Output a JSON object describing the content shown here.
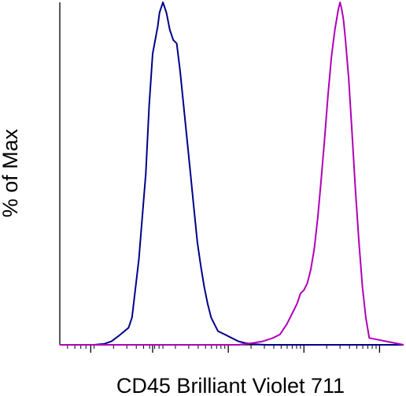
{
  "chart_data": {
    "type": "line",
    "chart_kind": "flow-cytometry-histogram",
    "title": "",
    "xlabel": "CD45 Brilliant Violet 711",
    "ylabel": "% of Max",
    "xscale": "biexponential",
    "x_tick_labels": [],
    "y_tick_labels": [],
    "xlim": [
      0,
      100
    ],
    "ylim": [
      0,
      100
    ],
    "grid": false,
    "legend": "none",
    "series": [
      {
        "color": "#00008b",
        "x": [
          0,
          10,
          13,
          15,
          17,
          20,
          21,
          23,
          25,
          26,
          27,
          28.5,
          29,
          30,
          31,
          32,
          33,
          34,
          35,
          36,
          37,
          38,
          39,
          40,
          41,
          42,
          43,
          44,
          45,
          46,
          48,
          50,
          52,
          54,
          56,
          60,
          100
        ],
        "y": [
          0,
          0,
          0.3,
          1,
          2.5,
          5,
          8,
          25,
          50,
          70,
          85,
          93,
          97,
          100,
          97,
          92,
          89,
          88,
          80,
          70,
          60,
          50,
          40,
          30,
          23,
          17,
          12,
          8,
          6,
          4,
          3,
          2,
          1,
          0.5,
          0.2,
          0,
          0
        ]
      },
      {
        "color": "#b000b8",
        "x": [
          0,
          30,
          52,
          56,
          59,
          62,
          64,
          66,
          68,
          69,
          70,
          71,
          72,
          73,
          74,
          75,
          76,
          77,
          78,
          79,
          80,
          80.5,
          81,
          81.5,
          82,
          82.5,
          83,
          84,
          85,
          86,
          87,
          88,
          89,
          90,
          100
        ],
        "y": [
          0,
          0,
          0,
          0.5,
          1,
          2,
          3,
          6,
          10,
          12,
          15,
          16,
          18,
          22,
          28,
          37,
          48,
          60,
          73,
          84,
          92,
          95,
          98,
          100,
          98,
          95,
          90,
          78,
          62,
          45,
          30,
          17,
          8,
          2,
          0
        ]
      }
    ]
  }
}
